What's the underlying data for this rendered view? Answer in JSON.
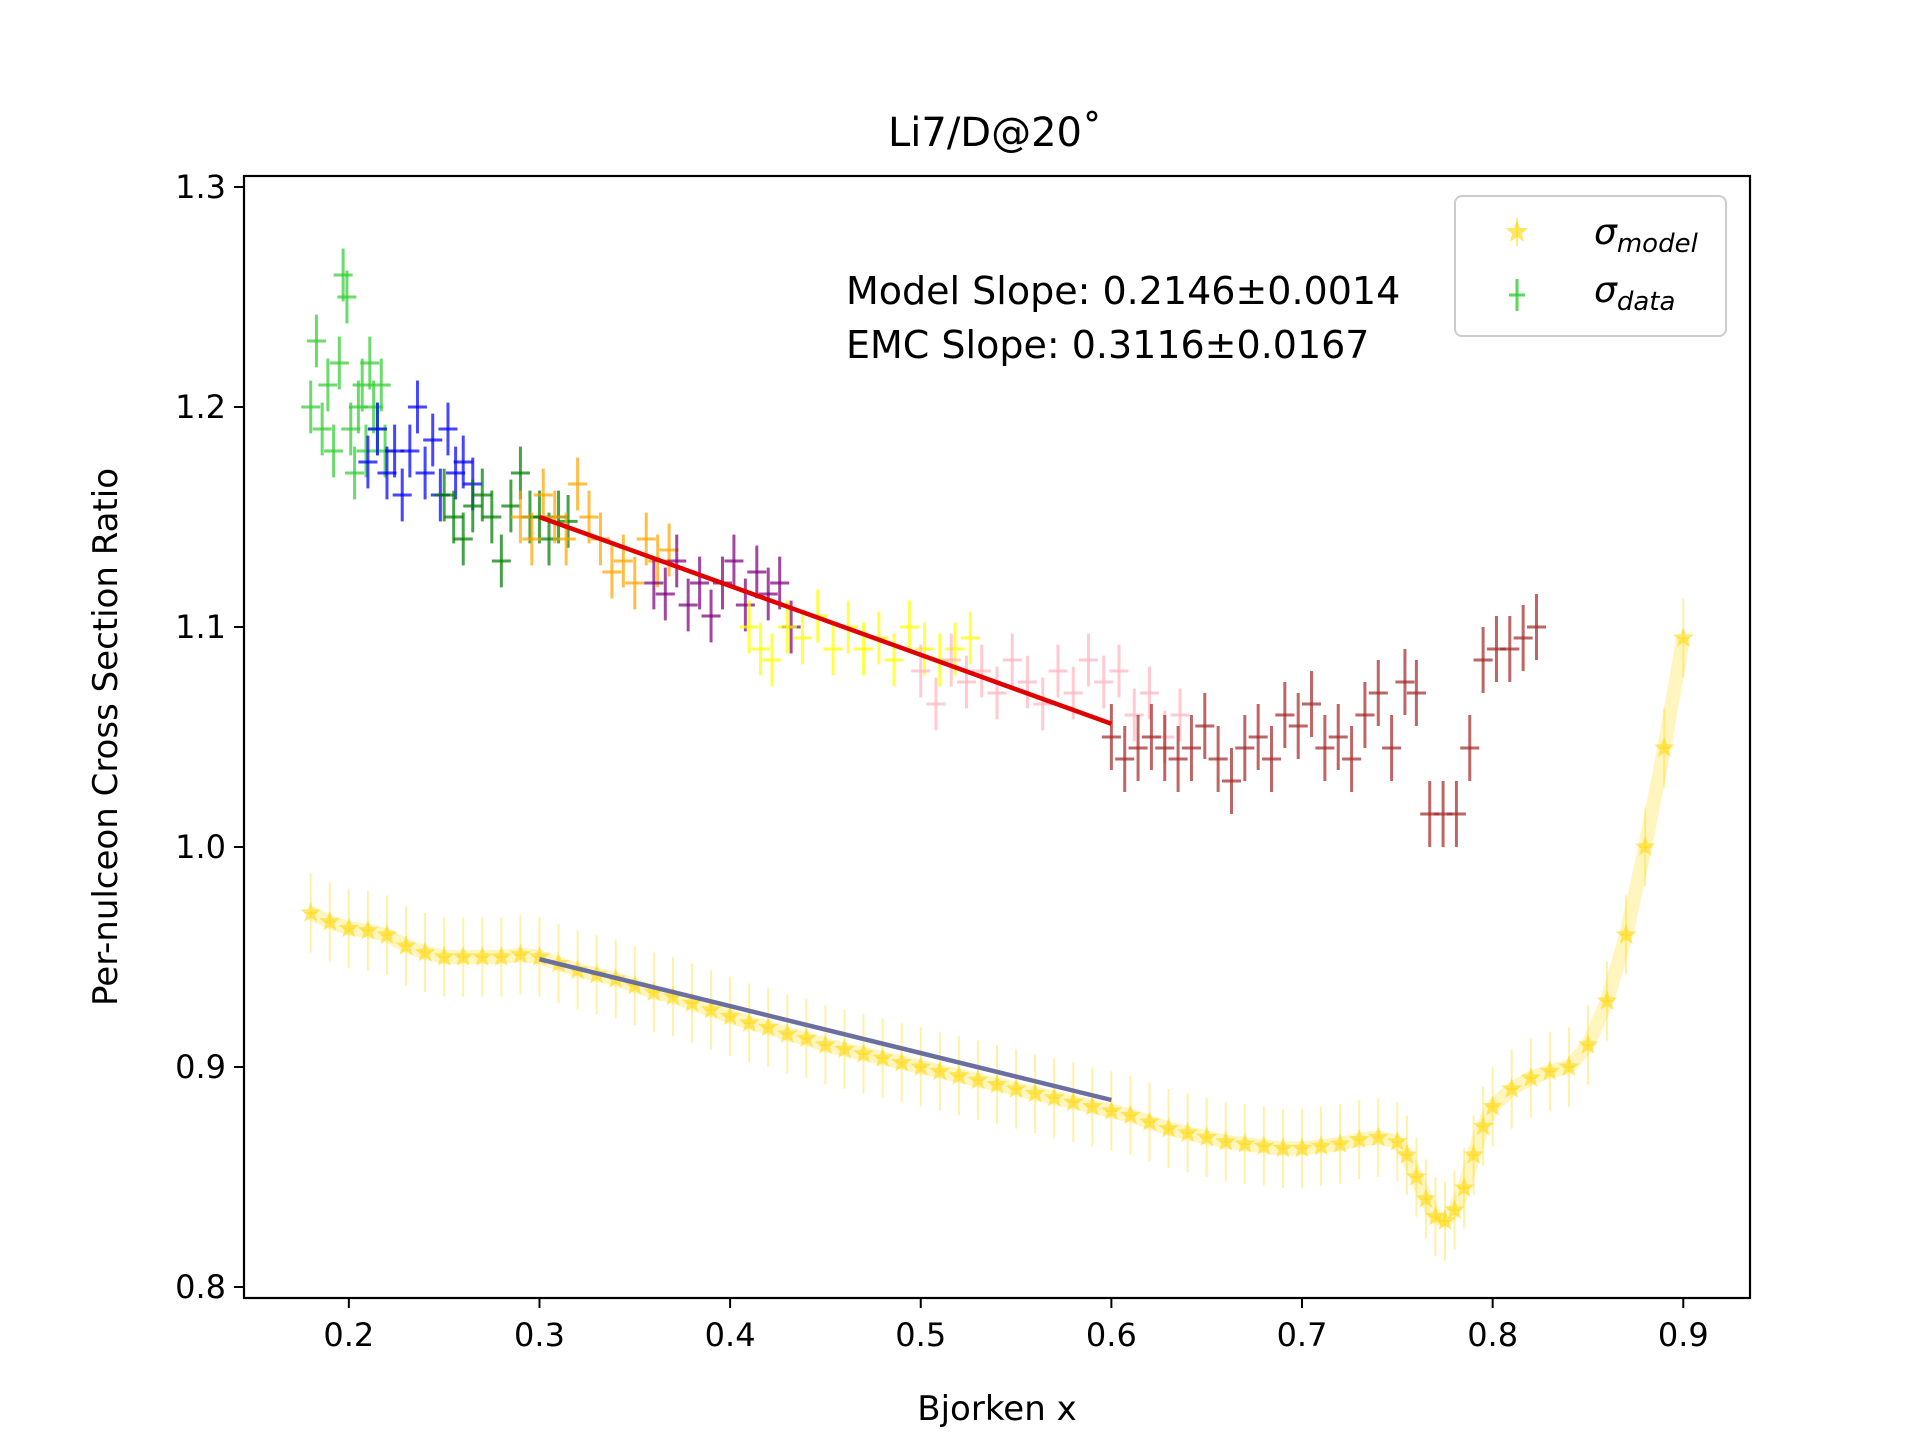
{
  "chart_data": {
    "type": "scatter",
    "title": "Li7/D@20˚",
    "xlabel": "Bjorken x",
    "ylabel": "Per-nulceon Cross Section Ratio",
    "xlim": [
      0.145,
      0.935
    ],
    "ylim": [
      0.795,
      1.305
    ],
    "xticks": [
      0.2,
      0.3,
      0.4,
      0.5,
      0.6,
      0.7,
      0.8,
      0.9
    ],
    "xtick_labels": [
      "0.2",
      "0.3",
      "0.4",
      "0.5",
      "0.6",
      "0.7",
      "0.8",
      "0.9"
    ],
    "yticks": [
      0.8,
      0.9,
      1.0,
      1.1,
      1.2,
      1.3
    ],
    "ytick_labels": [
      "0.8",
      "0.9",
      "1.0",
      "1.1",
      "1.2",
      "1.3"
    ],
    "grid": false,
    "legend_position": "top-right",
    "legend": [
      {
        "label_main": "σ",
        "label_sub": "model",
        "marker": "star",
        "color": "#FFD700"
      },
      {
        "label_main": "σ",
        "label_sub": "data",
        "marker": "errorbar",
        "color": "#32CD32"
      }
    ],
    "annotations": [
      "Model Slope: 0.2146±0.0014",
      "EMC Slope: 0.3116±0.0167"
    ],
    "colors": {
      "model": "#FFD700",
      "fit_data": "#E00000",
      "fit_model": "#6B6FA0"
    },
    "series": [
      {
        "color": "#32CD32",
        "xerr": 0.005,
        "yerr": 0.012,
        "points": [
          [
            0.18,
            1.2
          ],
          [
            0.183,
            1.23
          ],
          [
            0.186,
            1.19
          ],
          [
            0.189,
            1.21
          ],
          [
            0.192,
            1.18
          ],
          [
            0.195,
            1.22
          ],
          [
            0.197,
            1.26
          ],
          [
            0.199,
            1.25
          ],
          [
            0.201,
            1.19
          ],
          [
            0.203,
            1.17
          ],
          [
            0.205,
            1.2
          ],
          [
            0.207,
            1.21
          ],
          [
            0.209,
            1.18
          ],
          [
            0.211,
            1.22
          ],
          [
            0.213,
            1.2
          ],
          [
            0.215,
            1.19
          ],
          [
            0.217,
            1.21
          ],
          [
            0.219,
            1.18
          ]
        ]
      },
      {
        "color": "#0000FF",
        "xerr": 0.005,
        "yerr": 0.012,
        "points": [
          [
            0.21,
            1.175
          ],
          [
            0.215,
            1.19
          ],
          [
            0.22,
            1.17
          ],
          [
            0.224,
            1.18
          ],
          [
            0.228,
            1.16
          ],
          [
            0.232,
            1.18
          ],
          [
            0.236,
            1.2
          ],
          [
            0.24,
            1.17
          ],
          [
            0.244,
            1.185
          ],
          [
            0.248,
            1.16
          ],
          [
            0.252,
            1.19
          ],
          [
            0.256,
            1.17
          ],
          [
            0.26,
            1.175
          ],
          [
            0.265,
            1.165
          ]
        ]
      },
      {
        "color": "#008000",
        "xerr": 0.005,
        "yerr": 0.012,
        "points": [
          [
            0.25,
            1.16
          ],
          [
            0.255,
            1.15
          ],
          [
            0.26,
            1.14
          ],
          [
            0.265,
            1.155
          ],
          [
            0.27,
            1.16
          ],
          [
            0.275,
            1.15
          ],
          [
            0.28,
            1.13
          ],
          [
            0.285,
            1.155
          ],
          [
            0.29,
            1.17
          ],
          [
            0.295,
            1.15
          ],
          [
            0.3,
            1.15
          ],
          [
            0.305,
            1.14
          ],
          [
            0.31,
            1.15
          ],
          [
            0.315,
            1.148
          ]
        ]
      },
      {
        "color": "#FFA500",
        "xerr": 0.005,
        "yerr": 0.012,
        "points": [
          [
            0.29,
            1.15
          ],
          [
            0.296,
            1.14
          ],
          [
            0.302,
            1.16
          ],
          [
            0.308,
            1.15
          ],
          [
            0.314,
            1.14
          ],
          [
            0.32,
            1.165
          ],
          [
            0.326,
            1.15
          ],
          [
            0.332,
            1.14
          ],
          [
            0.338,
            1.125
          ],
          [
            0.344,
            1.13
          ],
          [
            0.35,
            1.12
          ],
          [
            0.356,
            1.14
          ],
          [
            0.362,
            1.13
          ],
          [
            0.368,
            1.135
          ]
        ]
      },
      {
        "color": "#800080",
        "xerr": 0.005,
        "yerr": 0.012,
        "points": [
          [
            0.36,
            1.12
          ],
          [
            0.366,
            1.115
          ],
          [
            0.372,
            1.13
          ],
          [
            0.378,
            1.11
          ],
          [
            0.384,
            1.12
          ],
          [
            0.39,
            1.105
          ],
          [
            0.396,
            1.12
          ],
          [
            0.402,
            1.13
          ],
          [
            0.408,
            1.11
          ],
          [
            0.414,
            1.125
          ],
          [
            0.42,
            1.115
          ],
          [
            0.426,
            1.12
          ],
          [
            0.432,
            1.1
          ]
        ]
      },
      {
        "color": "#FFFF00",
        "xerr": 0.005,
        "yerr": 0.012,
        "points": [
          [
            0.41,
            1.1
          ],
          [
            0.416,
            1.09
          ],
          [
            0.422,
            1.085
          ],
          [
            0.43,
            1.1
          ],
          [
            0.438,
            1.095
          ],
          [
            0.446,
            1.105
          ],
          [
            0.454,
            1.09
          ],
          [
            0.462,
            1.1
          ],
          [
            0.47,
            1.09
          ],
          [
            0.478,
            1.095
          ],
          [
            0.486,
            1.085
          ],
          [
            0.494,
            1.1
          ],
          [
            0.502,
            1.09
          ],
          [
            0.51,
            1.085
          ],
          [
            0.518,
            1.09
          ],
          [
            0.526,
            1.095
          ]
        ]
      },
      {
        "color": "#FFB6C1",
        "xerr": 0.005,
        "yerr": 0.012,
        "points": [
          [
            0.5,
            1.08
          ],
          [
            0.508,
            1.065
          ],
          [
            0.516,
            1.085
          ],
          [
            0.524,
            1.075
          ],
          [
            0.532,
            1.08
          ],
          [
            0.54,
            1.07
          ],
          [
            0.548,
            1.085
          ],
          [
            0.556,
            1.075
          ],
          [
            0.564,
            1.065
          ],
          [
            0.572,
            1.08
          ],
          [
            0.58,
            1.07
          ],
          [
            0.588,
            1.085
          ],
          [
            0.596,
            1.075
          ],
          [
            0.604,
            1.08
          ],
          [
            0.612,
            1.06
          ],
          [
            0.62,
            1.07
          ],
          [
            0.628,
            1.05
          ],
          [
            0.636,
            1.06
          ]
        ]
      },
      {
        "color": "#A52A2A",
        "xerr": 0.005,
        "yerr": 0.015,
        "points": [
          [
            0.6,
            1.05
          ],
          [
            0.607,
            1.04
          ],
          [
            0.614,
            1.045
          ],
          [
            0.621,
            1.05
          ],
          [
            0.628,
            1.045
          ],
          [
            0.635,
            1.04
          ],
          [
            0.642,
            1.045
          ],
          [
            0.649,
            1.055
          ],
          [
            0.656,
            1.04
          ],
          [
            0.663,
            1.03
          ],
          [
            0.67,
            1.045
          ],
          [
            0.677,
            1.05
          ],
          [
            0.684,
            1.04
          ],
          [
            0.691,
            1.06
          ],
          [
            0.698,
            1.055
          ],
          [
            0.705,
            1.065
          ],
          [
            0.712,
            1.045
          ],
          [
            0.719,
            1.05
          ],
          [
            0.726,
            1.04
          ],
          [
            0.733,
            1.06
          ],
          [
            0.74,
            1.07
          ],
          [
            0.747,
            1.045
          ],
          [
            0.754,
            1.075
          ],
          [
            0.76,
            1.07
          ],
          [
            0.767,
            1.015
          ],
          [
            0.774,
            1.015
          ],
          [
            0.781,
            1.015
          ],
          [
            0.788,
            1.045
          ],
          [
            0.795,
            1.085
          ],
          [
            0.802,
            1.09
          ],
          [
            0.809,
            1.09
          ],
          [
            0.816,
            1.095
          ],
          [
            0.823,
            1.1
          ]
        ]
      }
    ],
    "model_series": {
      "color": "#FFD700",
      "yerr": 0.018,
      "xerr": 0.003,
      "points": [
        [
          0.18,
          0.97
        ],
        [
          0.19,
          0.966
        ],
        [
          0.2,
          0.963
        ],
        [
          0.21,
          0.962
        ],
        [
          0.22,
          0.96
        ],
        [
          0.23,
          0.955
        ],
        [
          0.24,
          0.952
        ],
        [
          0.25,
          0.95
        ],
        [
          0.26,
          0.95
        ],
        [
          0.27,
          0.95
        ],
        [
          0.28,
          0.95
        ],
        [
          0.29,
          0.951
        ],
        [
          0.3,
          0.95
        ],
        [
          0.31,
          0.947
        ],
        [
          0.32,
          0.944
        ],
        [
          0.33,
          0.942
        ],
        [
          0.34,
          0.94
        ],
        [
          0.35,
          0.937
        ],
        [
          0.36,
          0.934
        ],
        [
          0.37,
          0.932
        ],
        [
          0.38,
          0.929
        ],
        [
          0.39,
          0.926
        ],
        [
          0.4,
          0.923
        ],
        [
          0.41,
          0.92
        ],
        [
          0.42,
          0.918
        ],
        [
          0.43,
          0.915
        ],
        [
          0.44,
          0.913
        ],
        [
          0.45,
          0.91
        ],
        [
          0.46,
          0.908
        ],
        [
          0.47,
          0.906
        ],
        [
          0.48,
          0.904
        ],
        [
          0.49,
          0.902
        ],
        [
          0.5,
          0.9
        ],
        [
          0.51,
          0.898
        ],
        [
          0.52,
          0.896
        ],
        [
          0.53,
          0.894
        ],
        [
          0.54,
          0.892
        ],
        [
          0.55,
          0.89
        ],
        [
          0.56,
          0.888
        ],
        [
          0.57,
          0.886
        ],
        [
          0.58,
          0.884
        ],
        [
          0.59,
          0.882
        ],
        [
          0.6,
          0.88
        ],
        [
          0.61,
          0.878
        ],
        [
          0.62,
          0.875
        ],
        [
          0.63,
          0.872
        ],
        [
          0.64,
          0.87
        ],
        [
          0.65,
          0.868
        ],
        [
          0.66,
          0.866
        ],
        [
          0.67,
          0.865
        ],
        [
          0.68,
          0.864
        ],
        [
          0.69,
          0.863
        ],
        [
          0.7,
          0.863
        ],
        [
          0.71,
          0.864
        ],
        [
          0.72,
          0.865
        ],
        [
          0.73,
          0.867
        ],
        [
          0.74,
          0.868
        ],
        [
          0.75,
          0.866
        ],
        [
          0.755,
          0.86
        ],
        [
          0.76,
          0.85
        ],
        [
          0.765,
          0.84
        ],
        [
          0.77,
          0.832
        ],
        [
          0.775,
          0.83
        ],
        [
          0.78,
          0.835
        ],
        [
          0.785,
          0.845
        ],
        [
          0.79,
          0.86
        ],
        [
          0.795,
          0.873
        ],
        [
          0.8,
          0.882
        ],
        [
          0.81,
          0.89
        ],
        [
          0.82,
          0.895
        ],
        [
          0.83,
          0.898
        ],
        [
          0.84,
          0.9
        ],
        [
          0.85,
          0.91
        ],
        [
          0.86,
          0.93
        ],
        [
          0.87,
          0.96
        ],
        [
          0.88,
          1.0
        ],
        [
          0.89,
          1.045
        ],
        [
          0.9,
          1.095
        ]
      ]
    },
    "fit_lines": [
      {
        "name": "data fit",
        "color": "#E00000",
        "x": [
          0.3,
          0.6
        ],
        "y": [
          1.15,
          1.056
        ]
      },
      {
        "name": "model fit",
        "color": "#6B6FA0",
        "x": [
          0.3,
          0.6
        ],
        "y": [
          0.949,
          0.885
        ]
      }
    ]
  }
}
